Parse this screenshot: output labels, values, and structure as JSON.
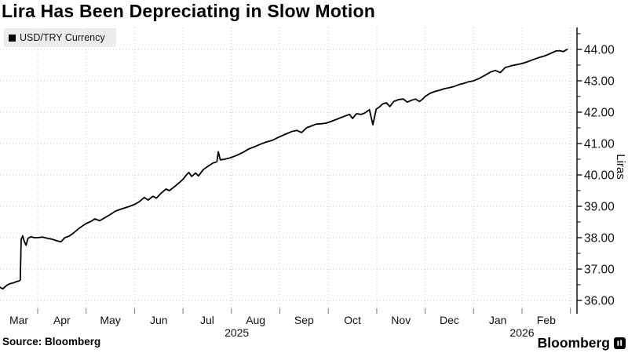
{
  "header": {
    "title": "Lira Has Been Depreciating in Slow Motion"
  },
  "legend": {
    "label": "USD/TRY Currency",
    "marker_color": "#000000"
  },
  "footer": {
    "source_label": "Source: Bloomberg",
    "brand": "Bloomberg"
  },
  "colors": {
    "line": "#000000",
    "grid": "#cbcbcb",
    "axis": "#000000",
    "tick_text": "#111111",
    "legend_bg": "#ececec"
  },
  "chart_data": {
    "type": "line",
    "title": "Lira Has Been Depreciating in Slow Motion",
    "series_name": "USD/TRY Currency",
    "ylabel": "Liras",
    "ylim": [
      35.6,
      44.7
    ],
    "y_ticks": [
      36,
      37,
      38,
      39,
      40,
      41,
      42,
      43,
      44
    ],
    "y_minor_step": 0.5,
    "x_months": [
      "Mar",
      "Apr",
      "May",
      "Jun",
      "Jul",
      "Aug",
      "Sep",
      "Oct",
      "Nov",
      "Dec",
      "Jan",
      "Feb"
    ],
    "x_years": [
      {
        "label": "2025",
        "span": [
          0,
          10
        ]
      },
      {
        "label": "2026",
        "span": [
          10,
          12
        ]
      }
    ],
    "grid": true,
    "legend_position": "top-left",
    "line_color": "#000000",
    "x_unit": "months since 2025-03-01",
    "points": [
      [
        0.22,
        36.42
      ],
      [
        0.28,
        36.37
      ],
      [
        0.33,
        36.44
      ],
      [
        0.38,
        36.5
      ],
      [
        0.44,
        36.54
      ],
      [
        0.5,
        36.56
      ],
      [
        0.56,
        36.6
      ],
      [
        0.61,
        36.62
      ],
      [
        0.64,
        36.65
      ],
      [
        0.66,
        37.95
      ],
      [
        0.69,
        38.06
      ],
      [
        0.72,
        37.9
      ],
      [
        0.76,
        37.76
      ],
      [
        0.8,
        37.98
      ],
      [
        0.86,
        38.03
      ],
      [
        0.93,
        38.0
      ],
      [
        1.0,
        38.0
      ],
      [
        1.1,
        38.02
      ],
      [
        1.2,
        37.98
      ],
      [
        1.3,
        37.95
      ],
      [
        1.4,
        37.9
      ],
      [
        1.48,
        37.87
      ],
      [
        1.56,
        38.0
      ],
      [
        1.65,
        38.05
      ],
      [
        1.74,
        38.15
      ],
      [
        1.84,
        38.28
      ],
      [
        1.93,
        38.38
      ],
      [
        2.0,
        38.45
      ],
      [
        2.1,
        38.52
      ],
      [
        2.18,
        38.6
      ],
      [
        2.28,
        38.54
      ],
      [
        2.38,
        38.63
      ],
      [
        2.5,
        38.74
      ],
      [
        2.6,
        38.84
      ],
      [
        2.7,
        38.9
      ],
      [
        2.8,
        38.95
      ],
      [
        2.9,
        39.0
      ],
      [
        3.0,
        39.06
      ],
      [
        3.1,
        39.15
      ],
      [
        3.2,
        39.28
      ],
      [
        3.28,
        39.2
      ],
      [
        3.38,
        39.32
      ],
      [
        3.45,
        39.26
      ],
      [
        3.55,
        39.42
      ],
      [
        3.65,
        39.55
      ],
      [
        3.72,
        39.5
      ],
      [
        3.82,
        39.62
      ],
      [
        3.92,
        39.75
      ],
      [
        4.0,
        39.86
      ],
      [
        4.06,
        39.98
      ],
      [
        4.12,
        40.08
      ],
      [
        4.18,
        39.95
      ],
      [
        4.26,
        40.06
      ],
      [
        4.32,
        39.97
      ],
      [
        4.42,
        40.17
      ],
      [
        4.52,
        40.28
      ],
      [
        4.62,
        40.38
      ],
      [
        4.7,
        40.42
      ],
      [
        4.73,
        40.74
      ],
      [
        4.77,
        40.48
      ],
      [
        4.86,
        40.5
      ],
      [
        4.94,
        40.53
      ],
      [
        5.0,
        40.56
      ],
      [
        5.12,
        40.63
      ],
      [
        5.24,
        40.72
      ],
      [
        5.36,
        40.83
      ],
      [
        5.48,
        40.9
      ],
      [
        5.6,
        40.98
      ],
      [
        5.72,
        41.05
      ],
      [
        5.84,
        41.1
      ],
      [
        5.92,
        41.16
      ],
      [
        6.0,
        41.22
      ],
      [
        6.12,
        41.3
      ],
      [
        6.24,
        41.38
      ],
      [
        6.35,
        41.42
      ],
      [
        6.45,
        41.35
      ],
      [
        6.55,
        41.5
      ],
      [
        6.65,
        41.56
      ],
      [
        6.75,
        41.62
      ],
      [
        6.85,
        41.63
      ],
      [
        6.95,
        41.65
      ],
      [
        7.05,
        41.7
      ],
      [
        7.15,
        41.76
      ],
      [
        7.25,
        41.82
      ],
      [
        7.35,
        41.88
      ],
      [
        7.44,
        41.93
      ],
      [
        7.5,
        41.8
      ],
      [
        7.58,
        41.95
      ],
      [
        7.68,
        41.93
      ],
      [
        7.76,
        41.98
      ],
      [
        7.85,
        42.08
      ],
      [
        7.92,
        41.6
      ],
      [
        7.99,
        42.1
      ],
      [
        8.05,
        42.16
      ],
      [
        8.12,
        42.26
      ],
      [
        8.2,
        42.3
      ],
      [
        8.27,
        42.18
      ],
      [
        8.35,
        42.34
      ],
      [
        8.45,
        42.4
      ],
      [
        8.55,
        42.42
      ],
      [
        8.63,
        42.32
      ],
      [
        8.72,
        42.38
      ],
      [
        8.8,
        42.42
      ],
      [
        8.88,
        42.34
      ],
      [
        8.95,
        42.42
      ],
      [
        9.0,
        42.5
      ],
      [
        9.1,
        42.6
      ],
      [
        9.2,
        42.66
      ],
      [
        9.3,
        42.7
      ],
      [
        9.4,
        42.75
      ],
      [
        9.5,
        42.78
      ],
      [
        9.6,
        42.82
      ],
      [
        9.7,
        42.88
      ],
      [
        9.8,
        42.92
      ],
      [
        9.9,
        42.97
      ],
      [
        10.0,
        43.0
      ],
      [
        10.12,
        43.08
      ],
      [
        10.24,
        43.18
      ],
      [
        10.35,
        43.28
      ],
      [
        10.45,
        43.33
      ],
      [
        10.55,
        43.26
      ],
      [
        10.65,
        43.42
      ],
      [
        10.78,
        43.48
      ],
      [
        10.9,
        43.52
      ],
      [
        11.0,
        43.55
      ],
      [
        11.1,
        43.6
      ],
      [
        11.22,
        43.67
      ],
      [
        11.35,
        43.74
      ],
      [
        11.48,
        43.8
      ],
      [
        11.6,
        43.88
      ],
      [
        11.7,
        43.95
      ],
      [
        11.78,
        43.96
      ],
      [
        11.85,
        43.93
      ],
      [
        11.93,
        44.0
      ]
    ]
  }
}
